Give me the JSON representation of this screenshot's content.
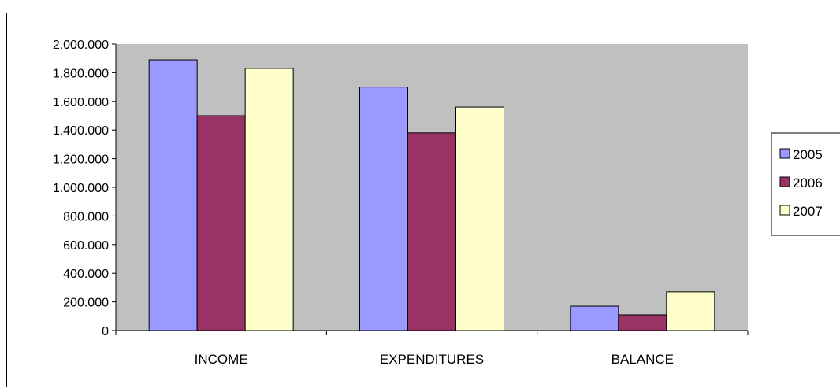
{
  "chart_data": {
    "type": "bar",
    "title": "",
    "xlabel": "",
    "ylabel": "",
    "categories": [
      "INCOME",
      "EXPENDITURES",
      "BALANCE"
    ],
    "series": [
      {
        "name": "2005",
        "values": [
          1890000,
          1700000,
          170000
        ],
        "color": "#9999ff"
      },
      {
        "name": "2006",
        "values": [
          1500000,
          1380000,
          110000
        ],
        "color": "#993366"
      },
      {
        "name": "2007",
        "values": [
          1830000,
          1560000,
          270000
        ],
        "color": "#ffffcc"
      }
    ],
    "ylim": [
      0,
      2000000
    ],
    "y_ticks": [
      "0",
      "200.000",
      "400.000",
      "600.000",
      "800.000",
      "1.000.000",
      "1.200.000",
      "1.400.000",
      "1.600.000",
      "1.800.000",
      "2.000.000"
    ],
    "y_tick_values": [
      0,
      200000,
      400000,
      600000,
      800000,
      1000000,
      1200000,
      1400000,
      1600000,
      1800000,
      2000000
    ],
    "grid": false,
    "legend_position": "right",
    "plot_background": "#c0c0c0"
  }
}
